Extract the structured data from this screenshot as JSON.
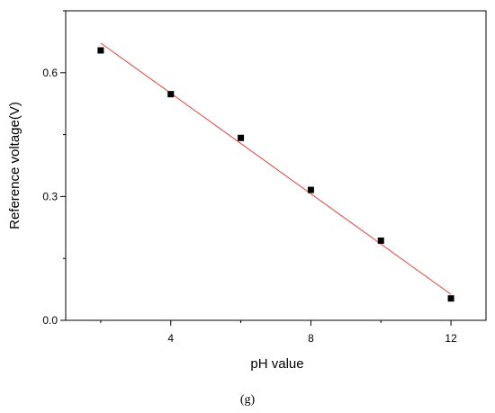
{
  "chart_data": {
    "type": "scatter",
    "xlabel": "pH value",
    "ylabel": "Reference voltage(V)",
    "caption": "(g)",
    "xlim": [
      1.0,
      13.0
    ],
    "ylim": [
      0.0,
      0.75
    ],
    "x_ticks": [
      4,
      8,
      12
    ],
    "y_ticks": [
      0.0,
      0.3,
      0.6
    ],
    "x_tick_labels": [
      "4",
      "8",
      "12"
    ],
    "y_tick_labels": [
      "0.0",
      "0.3",
      "0.6"
    ],
    "x_minor_ticks": [
      2,
      6,
      10
    ],
    "y_minor_ticks": [
      0.15,
      0.45,
      0.75
    ],
    "points": [
      {
        "x": 2,
        "y": 0.654
      },
      {
        "x": 4,
        "y": 0.548
      },
      {
        "x": 6,
        "y": 0.442
      },
      {
        "x": 8,
        "y": 0.316
      },
      {
        "x": 10,
        "y": 0.193
      },
      {
        "x": 12,
        "y": 0.053
      }
    ],
    "fit_line": {
      "x": [
        2,
        12
      ],
      "y": [
        0.672,
        0.063
      ]
    },
    "marker_color": "#000000",
    "fit_color": "#e8413b",
    "grid": false,
    "legend": "none"
  }
}
